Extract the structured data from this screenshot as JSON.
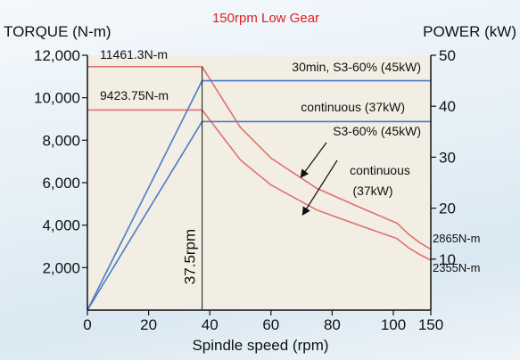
{
  "colors": {
    "torque": "#e07070",
    "power": "#4a7bc8",
    "subtitle": "#e02020",
    "plot_bg": "#f3eee3",
    "frame": "#111111"
  },
  "chart_data": {
    "type": "line",
    "title": "150rpm Low Gear",
    "xlabel": "Spindle speed (rpm)",
    "ylabel_left": "TORQUE (N-m)",
    "ylabel_right": "POWER (kW)",
    "xlim": [
      0,
      150
    ],
    "ylim_left": [
      0,
      12000
    ],
    "ylim_right": [
      0,
      50
    ],
    "x_ticks": [
      "0",
      "20",
      "40",
      "60",
      "80",
      "100",
      "150"
    ],
    "x_tick_values": [
      0,
      20,
      40,
      60,
      80,
      100,
      150
    ],
    "y_left_ticks": [
      "2,000",
      "4,000",
      "6,000",
      "8,000",
      "10,000",
      "12,000"
    ],
    "y_left_tick_values": [
      2000,
      4000,
      6000,
      8000,
      10000,
      12000
    ],
    "y_right_ticks": [
      "10",
      "20",
      "30",
      "40",
      "50"
    ],
    "y_right_tick_values": [
      10,
      20,
      30,
      40,
      50
    ],
    "vline": {
      "x": 37.5,
      "label": "37.5rpm"
    },
    "series": [
      {
        "name": "S3-60% (45kW)",
        "axis": "left",
        "color": "#e07070",
        "x": [
          0,
          37.5,
          50,
          60,
          75,
          90,
          105,
          120,
          135,
          150
        ],
        "y": [
          11461.3,
          11461.3,
          8600,
          7160,
          5730,
          4780,
          4090,
          3580,
          3180,
          2865
        ]
      },
      {
        "name": "continuous (37kW)",
        "axis": "left",
        "color": "#e07070",
        "x": [
          0,
          37.5,
          50,
          60,
          75,
          90,
          105,
          120,
          135,
          150
        ],
        "y": [
          9423.75,
          9423.75,
          7070,
          5890,
          4710,
          3930,
          3370,
          2940,
          2620,
          2355
        ]
      },
      {
        "name": "30min, S3-60% (45kW)",
        "axis": "right",
        "color": "#4a7bc8",
        "x": [
          0,
          37.5,
          150
        ],
        "y": [
          0,
          45,
          45
        ]
      },
      {
        "name": "continuous (37kW)",
        "axis": "right",
        "color": "#4a7bc8",
        "x": [
          0,
          37.5,
          150
        ],
        "y": [
          0,
          37,
          37
        ]
      }
    ],
    "annotations": {
      "torque_max": "11461.3N-m",
      "torque_cont": "9423.75N-m",
      "power_max": "30min, S3-60% (45kW)",
      "power_cont": "continuous (37kW)",
      "torque_s3_label": "S3-60% (45kW)",
      "torque_cont_label_1": "continuous",
      "torque_cont_label_2": "(37kW)",
      "torque_end_s3": "2865N-m",
      "torque_end_cont": "2355N-m"
    }
  }
}
